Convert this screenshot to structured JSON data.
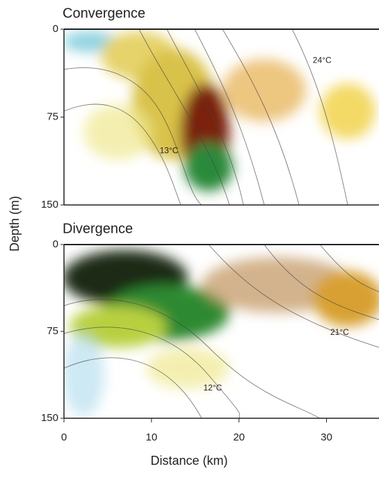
{
  "chart_data": [
    {
      "type": "contour",
      "title": "Convergence",
      "xlim": [
        0,
        36
      ],
      "ylim": [
        150,
        0
      ],
      "yticks": [
        0,
        75,
        150
      ],
      "annotations": [
        {
          "text": "24°C",
          "x": 29.5,
          "y": 27
        },
        {
          "text": "13°C",
          "x": 12,
          "y": 104
        }
      ]
    },
    {
      "type": "contour",
      "title": "Divergence",
      "xlim": [
        0,
        36
      ],
      "ylim": [
        150,
        0
      ],
      "yticks": [
        0,
        75,
        150
      ],
      "xticks": [
        0,
        10,
        20,
        30
      ],
      "xlabel": "Distance  (km)",
      "ylabel": "Depth (m)",
      "annotations": [
        {
          "text": "21°C",
          "x": 31.5,
          "y": 76
        },
        {
          "text": "12°C",
          "x": 17,
          "y": 124
        }
      ]
    }
  ]
}
